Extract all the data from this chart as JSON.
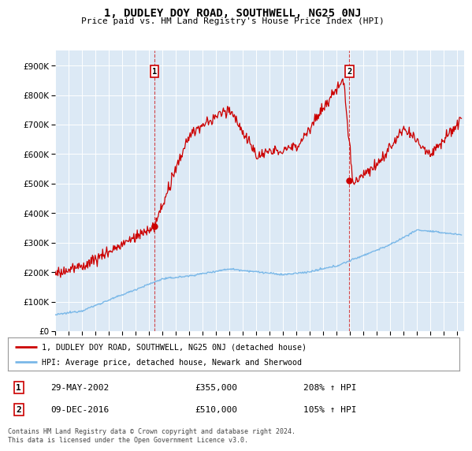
{
  "title": "1, DUDLEY DOY ROAD, SOUTHWELL, NG25 0NJ",
  "subtitle": "Price paid vs. HM Land Registry's House Price Index (HPI)",
  "yticks": [
    0,
    100000,
    200000,
    300000,
    400000,
    500000,
    600000,
    700000,
    800000,
    900000
  ],
  "ytick_labels": [
    "£0",
    "£100K",
    "£200K",
    "£300K",
    "£400K",
    "£500K",
    "£600K",
    "£700K",
    "£800K",
    "£900K"
  ],
  "background_color": "#ffffff",
  "plot_bg_color": "#dce9f5",
  "grid_color": "#ffffff",
  "red_line_color": "#cc0000",
  "blue_line_color": "#7ab8e8",
  "sale1_x": 2002.41,
  "sale1_y": 355000,
  "sale1_label": "1",
  "sale1_date": "29-MAY-2002",
  "sale1_price": "£355,000",
  "sale1_hpi": "208% ↑ HPI",
  "sale2_x": 2016.94,
  "sale2_y": 510000,
  "sale2_label": "2",
  "sale2_date": "09-DEC-2016",
  "sale2_price": "£510,000",
  "sale2_hpi": "105% ↑ HPI",
  "legend_line1": "1, DUDLEY DOY ROAD, SOUTHWELL, NG25 0NJ (detached house)",
  "legend_line2": "HPI: Average price, detached house, Newark and Sherwood",
  "footer": "Contains HM Land Registry data © Crown copyright and database right 2024.\nThis data is licensed under the Open Government Licence v3.0.",
  "xmin": 1995,
  "xmax": 2025.5,
  "ymin": 0,
  "ymax": 950000
}
